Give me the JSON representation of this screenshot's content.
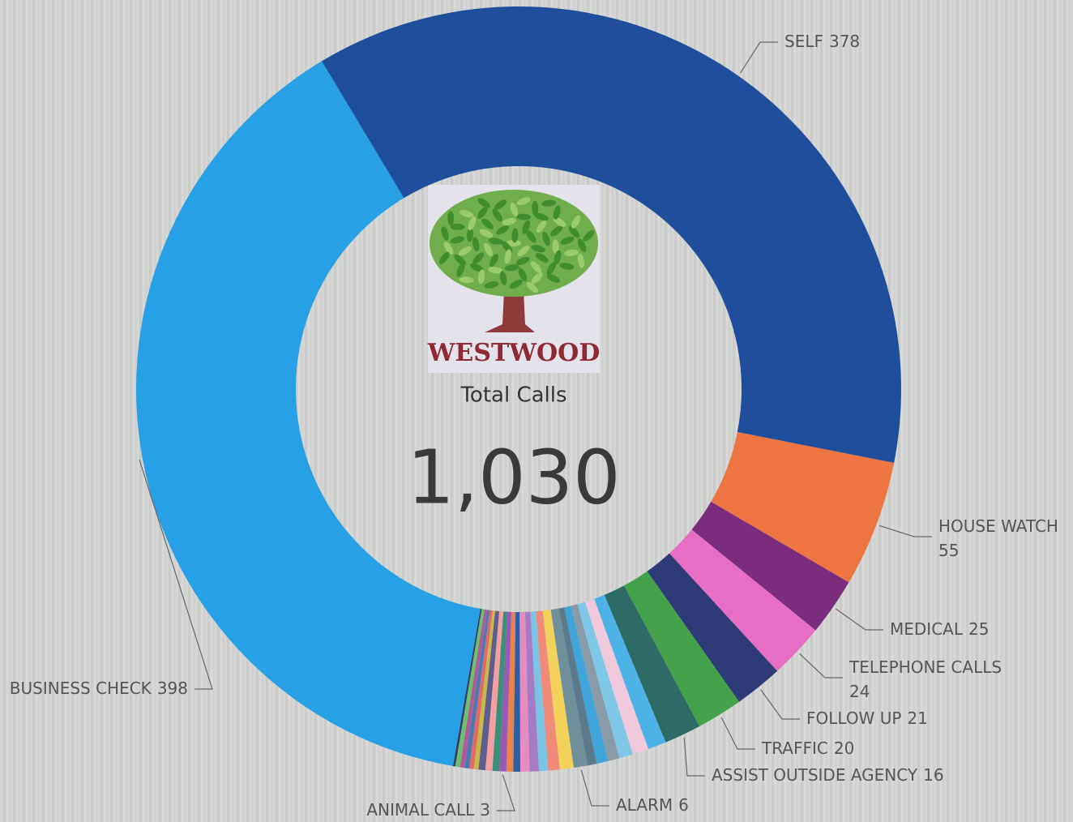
{
  "chart_data": {
    "type": "donut",
    "logo_text": "WESTWOOD",
    "title": "Total Calls",
    "total": {
      "value": 1030,
      "label": "1,030"
    },
    "categories": [
      "SELF",
      "HOUSE WATCH",
      "MEDICAL",
      "TELEPHONE CALLS",
      "FOLLOW UP",
      "TRAFFIC",
      "ASSIST OUTSIDE AGENCY",
      null,
      null,
      null,
      null,
      null,
      null,
      "ALARM",
      null,
      null,
      null,
      null,
      null,
      null,
      null,
      "ANIMAL CALL",
      null,
      null,
      null,
      null,
      null,
      null,
      null,
      null,
      null,
      "BUSINESS CHECK"
    ],
    "values": [
      378,
      55,
      25,
      24,
      21,
      20,
      16,
      8,
      7,
      6,
      5,
      5,
      4,
      6,
      6,
      5,
      4,
      4,
      4,
      3,
      3,
      3,
      3,
      3,
      3,
      2,
      2,
      2,
      2,
      2,
      1,
      398
    ],
    "colors": [
      "#1f4e9c",
      "#ec7541",
      "#7b2c7f",
      "#e66fc4",
      "#2f3a78",
      "#44a34a",
      "#2e6a66",
      "#4db3e6",
      "#f1c9dc",
      "#7fc7e8",
      "#8a9ba8",
      "#3fa4d8",
      "#5d7a8c",
      "#6f8f9a",
      "#f2d25a",
      "#f08b7a",
      "#7cc4e6",
      "#a57bc4",
      "#e58cc0",
      "#2c5fa8",
      "#e8834a",
      "#9b59b6",
      "#3c8f7a",
      "#f5a0a0",
      "#5e5e8e",
      "#c8b84a",
      "#e06a6a",
      "#4a7ab0",
      "#b05a9a",
      "#6cbf6c",
      "#333c66",
      "#27a0e6"
    ]
  }
}
